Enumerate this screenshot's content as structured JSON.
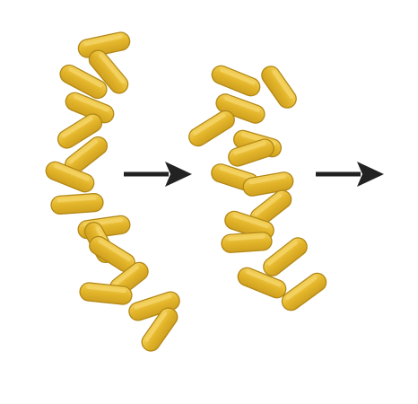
{
  "colors": {
    "background": "#ffffff",
    "rod_fill": "#e3b52a",
    "rod_outline": "#b28716",
    "rod_highlight": "#f6d66a",
    "arrow": "#222222"
  },
  "icons": {
    "rod": "bacillus-rod-icon",
    "arrow": "right-arrow-icon"
  },
  "clusters": [
    {
      "name": "rod-cluster-before",
      "rod_count": 18
    },
    {
      "name": "rod-cluster-after",
      "rod_count": 16
    }
  ],
  "arrows": [
    {
      "name": "process-arrow-1"
    },
    {
      "name": "process-arrow-2"
    }
  ]
}
